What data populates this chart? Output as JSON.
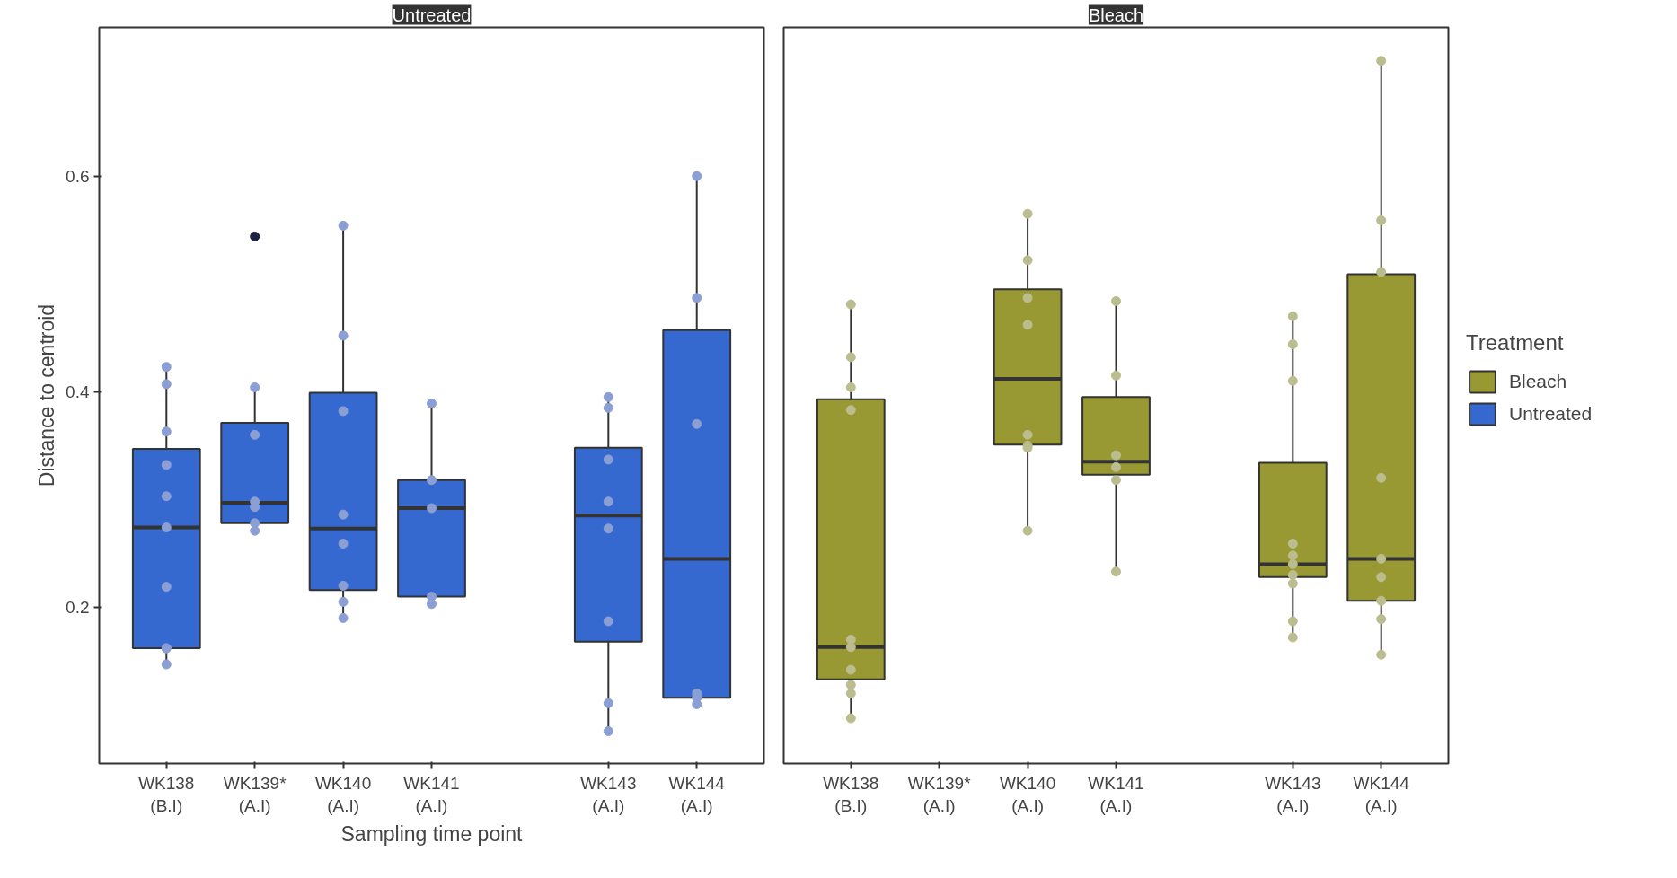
{
  "chart_data": [
    {
      "type": "box",
      "title": "Untreated",
      "xlabel": "Sampling time point",
      "ylabel": "Distance to centroid",
      "categories": [
        "WK138\n(B.I)",
        "WK139*\n(A.I)",
        "WK140\n(A.I)",
        "WK141\n(A.I)",
        null,
        "WK143\n(A.I)",
        "WK144\n(A.I)"
      ],
      "ylim": [
        0.055,
        0.738
      ],
      "yticks": [
        0.2,
        0.4,
        0.6
      ],
      "marker": "circle",
      "series": [
        {
          "name": "Untreated",
          "color": "#3569d0",
          "boxes": [
            {
              "low": 0.147,
              "q1": 0.162,
              "median": 0.274,
              "q3": 0.347,
              "high": 0.423
            },
            {
              "low": 0.272,
              "q1": 0.278,
              "median": 0.297,
              "q3": 0.371,
              "high": 0.404
            },
            {
              "low": 0.19,
              "q1": 0.216,
              "median": 0.273,
              "q3": 0.399,
              "high": 0.554
            },
            {
              "low": 0.203,
              "q1": 0.21,
              "median": 0.292,
              "q3": 0.318,
              "high": 0.389
            },
            null,
            {
              "low": 0.086,
              "q1": 0.168,
              "median": 0.285,
              "q3": 0.348,
              "high": 0.393
            },
            {
              "low": 0.11,
              "q1": 0.116,
              "median": 0.245,
              "q3": 0.457,
              "high": 0.6
            }
          ]
        },
        {
          "type": "scatter",
          "color": "#8c9fd4",
          "colors": [
            null,
            null,
            null,
            null,
            null,
            null,
            null,
            null,
            null,
            null,
            "#1c2340",
            null,
            null,
            null,
            null,
            null,
            null,
            null,
            null,
            null,
            null,
            null,
            null,
            null,
            null,
            null,
            null,
            null,
            null,
            null,
            null,
            null,
            null,
            null,
            null,
            null,
            null,
            null,
            null,
            null,
            null,
            null,
            null,
            null
          ],
          "x": [
            "WK138\n(B.I)",
            "WK138\n(B.I)",
            "WK138\n(B.I)",
            "WK138\n(B.I)",
            "WK138\n(B.I)",
            "WK138\n(B.I)",
            "WK138\n(B.I)",
            "WK138\n(B.I)",
            "WK138\n(B.I)",
            "WK138\n(B.I)",
            "WK139*\n(A.I)",
            "WK139*\n(A.I)",
            "WK139*\n(A.I)",
            "WK139*\n(A.I)",
            "WK139*\n(A.I)",
            "WK139*\n(A.I)",
            "WK139*\n(A.I)",
            "WK140\n(A.I)",
            "WK140\n(A.I)",
            "WK140\n(A.I)",
            "WK140\n(A.I)",
            "WK140\n(A.I)",
            "WK140\n(A.I)",
            "WK140\n(A.I)",
            "WK140\n(A.I)",
            "WK141\n(A.I)",
            "WK141\n(A.I)",
            "WK141\n(A.I)",
            "WK141\n(A.I)",
            "WK141\n(A.I)",
            "WK143\n(A.I)",
            "WK143\n(A.I)",
            "WK143\n(A.I)",
            "WK143\n(A.I)",
            "WK143\n(A.I)",
            "WK143\n(A.I)",
            "WK143\n(A.I)",
            "WK143\n(A.I)",
            "WK144\n(A.I)",
            "WK144\n(A.I)",
            "WK144\n(A.I)",
            "WK144\n(A.I)",
            "WK144\n(A.I)",
            "WK144\n(A.I)"
          ],
          "values": [
            0.423,
            0.407,
            0.363,
            0.332,
            0.303,
            0.274,
            0.219,
            0.162,
            0.162,
            0.147,
            0.544,
            0.404,
            0.36,
            0.298,
            0.293,
            0.278,
            0.271,
            0.554,
            0.452,
            0.382,
            0.286,
            0.259,
            0.22,
            0.205,
            0.19,
            0.389,
            0.318,
            0.292,
            0.21,
            0.203,
            0.395,
            0.385,
            0.337,
            0.298,
            0.273,
            0.187,
            0.111,
            0.085,
            0.6,
            0.487,
            0.37,
            0.12,
            0.116,
            0.11
          ]
        }
      ]
    },
    {
      "type": "box",
      "title": "Bleach",
      "tick_labels": "x",
      "legend": "right",
      "legend_title": "Treatment",
      "categories": [
        "WK138\n(B.I)",
        "WK139*\n(A.I)",
        "WK140\n(A.I)",
        "WK141\n(A.I)",
        null,
        "WK143\n(A.I)",
        "WK144\n(A.I)"
      ],
      "ylim": [
        0.055,
        0.738
      ],
      "yticks": [
        0.2,
        0.4,
        0.6
      ],
      "marker": "circle",
      "series": [
        {
          "name": "Bleach",
          "color": "#999933",
          "boxes": [
            {
              "low": 0.097,
              "q1": 0.133,
              "median": 0.163,
              "q3": 0.393,
              "high": 0.48
            },
            null,
            {
              "low": 0.271,
              "q1": 0.351,
              "median": 0.412,
              "q3": 0.495,
              "high": 0.565
            },
            {
              "low": 0.233,
              "q1": 0.323,
              "median": 0.335,
              "q3": 0.395,
              "high": 0.484
            },
            null,
            {
              "low": 0.173,
              "q1": 0.228,
              "median": 0.24,
              "q3": 0.334,
              "high": 0.469
            },
            {
              "low": 0.156,
              "q1": 0.206,
              "median": 0.245,
              "q3": 0.509,
              "high": 0.707
            }
          ]
        },
        {
          "type": "scatter",
          "color": "#bcbd8f",
          "x": [
            "WK138\n(B.I)",
            "WK138\n(B.I)",
            "WK138\n(B.I)",
            "WK138\n(B.I)",
            "WK138\n(B.I)",
            "WK138\n(B.I)",
            "WK138\n(B.I)",
            "WK138\n(B.I)",
            "WK138\n(B.I)",
            "WK138\n(B.I)",
            "WK140\n(A.I)",
            "WK140\n(A.I)",
            "WK140\n(A.I)",
            "WK140\n(A.I)",
            "WK140\n(A.I)",
            "WK140\n(A.I)",
            "WK140\n(A.I)",
            "WK140\n(A.I)",
            "WK141\n(A.I)",
            "WK141\n(A.I)",
            "WK141\n(A.I)",
            "WK141\n(A.I)",
            "WK141\n(A.I)",
            "WK141\n(A.I)",
            "WK143\n(A.I)",
            "WK143\n(A.I)",
            "WK143\n(A.I)",
            "WK143\n(A.I)",
            "WK143\n(A.I)",
            "WK143\n(A.I)",
            "WK143\n(A.I)",
            "WK143\n(A.I)",
            "WK143\n(A.I)",
            "WK143\n(A.I)",
            "WK144\n(A.I)",
            "WK144\n(A.I)",
            "WK144\n(A.I)",
            "WK144\n(A.I)",
            "WK144\n(A.I)",
            "WK144\n(A.I)",
            "WK144\n(A.I)",
            "WK144\n(A.I)",
            "WK144\n(A.I)"
          ],
          "values": [
            0.481,
            0.432,
            0.404,
            0.383,
            0.17,
            0.163,
            0.142,
            0.128,
            0.12,
            0.097,
            0.565,
            0.522,
            0.487,
            0.462,
            0.36,
            0.35,
            0.348,
            0.271,
            0.484,
            0.415,
            0.341,
            0.33,
            0.318,
            0.233,
            0.47,
            0.444,
            0.41,
            0.259,
            0.248,
            0.24,
            0.23,
            0.222,
            0.187,
            0.172,
            0.707,
            0.559,
            0.511,
            0.32,
            0.245,
            0.228,
            0.206,
            0.189,
            0.156
          ]
        }
      ]
    }
  ]
}
